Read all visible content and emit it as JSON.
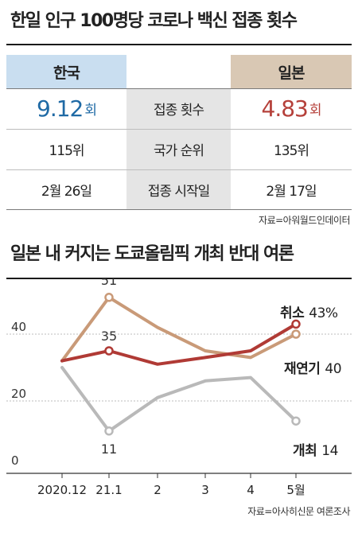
{
  "title1": "한일 인구 100명당 코로나 백신 접종 횟수",
  "table": {
    "left_header": "한국",
    "right_header": "일본",
    "rows": [
      {
        "label": "접종 횟수",
        "left_value": "9.12",
        "left_unit": "회",
        "right_value": "4.83",
        "right_unit": "회"
      },
      {
        "label": "국가 순위",
        "left_value": "115위",
        "right_value": "135위"
      },
      {
        "label": "접종 시작일",
        "left_value": "2월 26일",
        "right_value": "2월 17일"
      }
    ],
    "source": "자료=아워월드인데이터"
  },
  "title2": "일본 내 커지는 도쿄올림픽 개최 반대 여론",
  "chart_data": {
    "type": "line",
    "categories": [
      "2020.12",
      "21.1",
      "2",
      "3",
      "4",
      "5월"
    ],
    "ylim": [
      0,
      50
    ],
    "yticks": [
      "0",
      "20",
      "40"
    ],
    "grid": true,
    "series": [
      {
        "name": "취소",
        "values": [
          32,
          35,
          31,
          33,
          35,
          43
        ],
        "color": "#b03a35",
        "end_label": "43%"
      },
      {
        "name": "재연기",
        "values": [
          32,
          51,
          42,
          35,
          33,
          40
        ],
        "color": "#c99a78",
        "end_label": "40"
      },
      {
        "name": "개최",
        "values": [
          30,
          11,
          21,
          26,
          27,
          14
        ],
        "color": "#b9b9b9",
        "end_label": "14"
      }
    ],
    "point_labels": [
      {
        "series": 1,
        "index": 1,
        "text": "51"
      },
      {
        "series": 0,
        "index": 1,
        "text": "35"
      },
      {
        "series": 2,
        "index": 1,
        "text": "11"
      }
    ],
    "source": "자료=아사히신문 여론조사"
  }
}
